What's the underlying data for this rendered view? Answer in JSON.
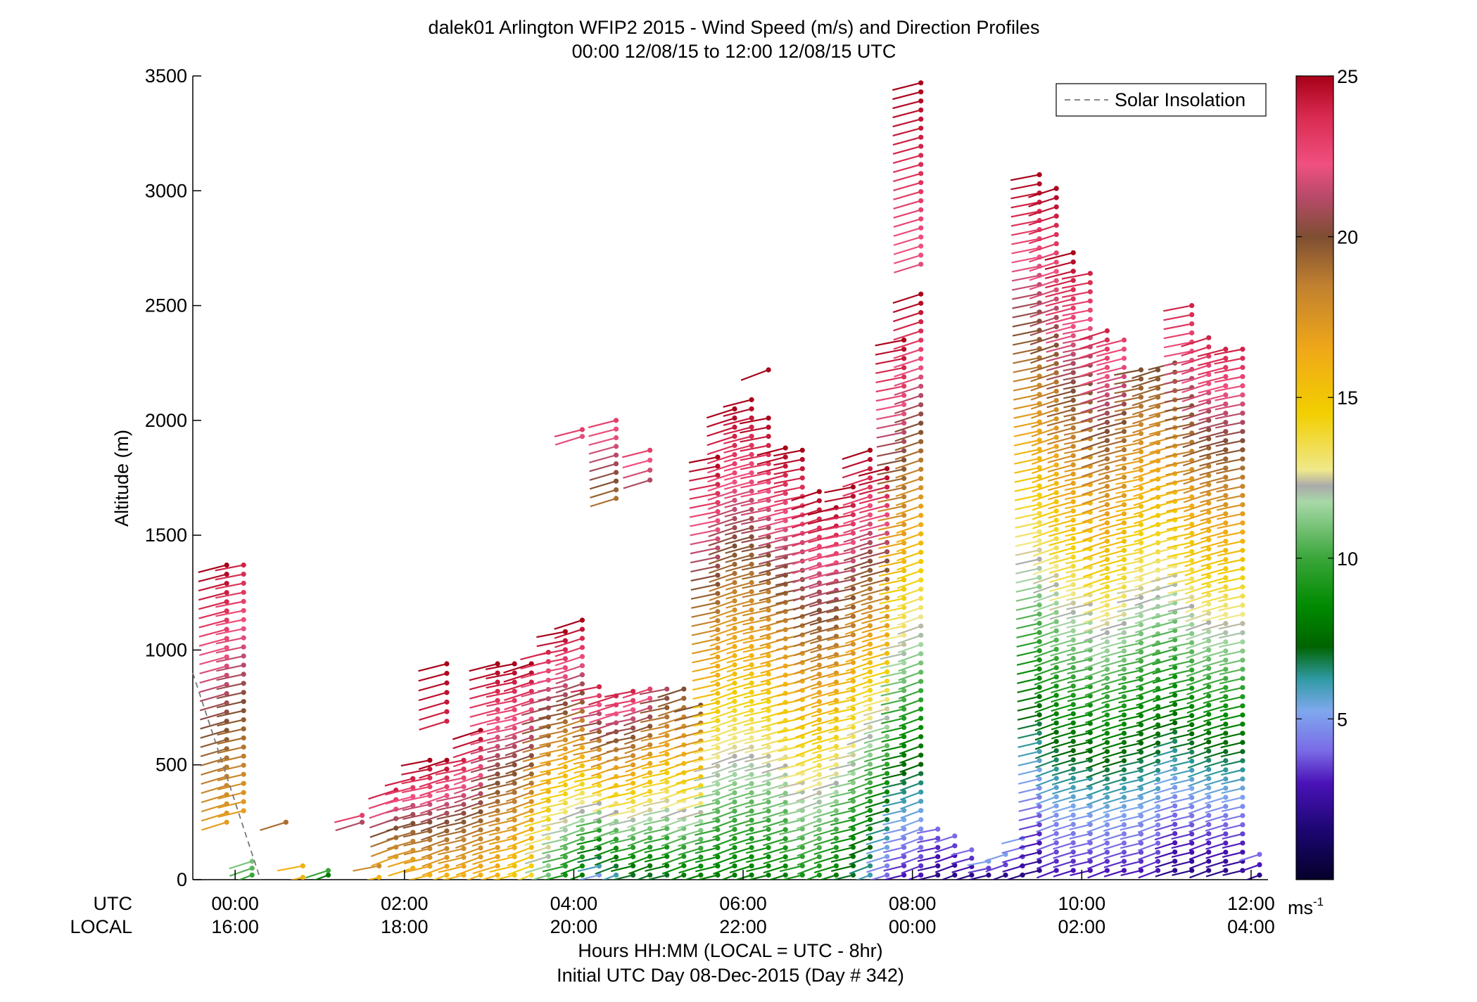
{
  "chart_data": {
    "type": "scatter",
    "title": "dalek01 Arlington WFIP2 2015 - Wind Speed (m/s) and Direction Profiles",
    "subtitle": "00:00 12/08/15 to 12:00 12/08/15  UTC",
    "xlabel": "Hours HH:MM  (LOCAL = UTC - 8hr)",
    "xlabel2": "Initial UTC Day 08-Dec-2015 (Day # 342)",
    "ylabel": "Altitude (m)",
    "ylim": [
      0,
      3500
    ],
    "xlim_hours": [
      -0.5,
      12.2
    ],
    "grid": false,
    "legend_placement": "top-right",
    "legend_entries": [
      "Solar Insolation"
    ],
    "x_row_labels": {
      "utc": "UTC",
      "local": "LOCAL"
    },
    "x_ticks_hours": [
      0,
      2,
      4,
      6,
      8,
      10,
      12
    ],
    "x_tick_labels_utc": [
      "00:00",
      "02:00",
      "04:00",
      "06:00",
      "08:00",
      "10:00",
      "12:00"
    ],
    "x_tick_labels_local": [
      "16:00",
      "18:00",
      "20:00",
      "22:00",
      "00:00",
      "02:00",
      "04:00"
    ],
    "y_ticks": [
      0,
      500,
      1000,
      1500,
      2000,
      2500,
      3000,
      3500
    ],
    "y_tick_labels": [
      "0",
      "500",
      "1000",
      "1500",
      "2000",
      "2500",
      "3000",
      "3500"
    ],
    "colorbar": {
      "min": 0,
      "max": 25,
      "ticks": [
        5,
        10,
        15,
        20,
        25
      ],
      "tick_labels": [
        "5",
        "10",
        "15",
        "20",
        "25"
      ],
      "unit_label": "ms",
      "unit_exponent": "-1"
    },
    "solar_insolation": {
      "x": [
        -0.5,
        -0.1,
        0.3
      ],
      "y": [
        900,
        450,
        0
      ]
    },
    "profiles": [
      {
        "t": -0.1,
        "z0": 250,
        "z1": 1370,
        "lo": 17,
        "hi": 25
      },
      {
        "t": 0.1,
        "z0": 300,
        "z1": 1370,
        "lo": 17,
        "hi": 24
      },
      {
        "t": 0.2,
        "z0": 20,
        "z1": 80,
        "lo": 10,
        "hi": 11
      },
      {
        "t": 0.6,
        "z0": 250,
        "z1": 250,
        "lo": 19,
        "hi": 19
      },
      {
        "t": 0.8,
        "z0": 10,
        "z1": 60,
        "lo": 16,
        "hi": 16
      },
      {
        "t": 1.1,
        "z0": 20,
        "z1": 40,
        "lo": 8,
        "hi": 10
      },
      {
        "t": 1.5,
        "z0": 250,
        "z1": 280,
        "lo": 21,
        "hi": 23
      },
      {
        "t": 1.7,
        "z0": 10,
        "z1": 60,
        "lo": 16,
        "hi": 18
      },
      {
        "t": 1.9,
        "z0": 100,
        "z1": 390,
        "lo": 17,
        "hi": 24
      },
      {
        "t": 2.1,
        "z0": 50,
        "z1": 440,
        "lo": 16,
        "hi": 24
      },
      {
        "t": 2.3,
        "z0": 20,
        "z1": 520,
        "lo": 16,
        "hi": 25
      },
      {
        "t": 2.5,
        "z0": 20,
        "z1": 520,
        "lo": 16,
        "hi": 25
      },
      {
        "t": 2.5,
        "z0": 690,
        "z1": 940,
        "lo": 24,
        "hi": 25
      },
      {
        "t": 2.7,
        "z0": 20,
        "z1": 520,
        "lo": 16,
        "hi": 24
      },
      {
        "t": 2.9,
        "z0": 20,
        "z1": 650,
        "lo": 16,
        "hi": 25
      },
      {
        "t": 3.1,
        "z0": 20,
        "z1": 940,
        "lo": 16,
        "hi": 25
      },
      {
        "t": 3.3,
        "z0": 20,
        "z1": 940,
        "lo": 15,
        "hi": 25
      },
      {
        "t": 3.5,
        "z0": 20,
        "z1": 940,
        "lo": 14,
        "hi": 25
      },
      {
        "t": 3.7,
        "z0": 20,
        "z1": 990,
        "lo": 11,
        "hi": 24
      },
      {
        "t": 3.9,
        "z0": 20,
        "z1": 1080,
        "lo": 9,
        "hi": 25
      },
      {
        "t": 4.1,
        "z0": 20,
        "z1": 1130,
        "lo": 8,
        "hi": 25
      },
      {
        "t": 4.1,
        "z0": 1930,
        "z1": 1960,
        "lo": 22,
        "hi": 23
      },
      {
        "t": 4.3,
        "z0": 20,
        "z1": 840,
        "lo": 5,
        "hi": 24
      },
      {
        "t": 4.5,
        "z0": 20,
        "z1": 800,
        "lo": 6,
        "hi": 24
      },
      {
        "t": 4.5,
        "z0": 1660,
        "z1": 2000,
        "lo": 19,
        "hi": 23
      },
      {
        "t": 4.7,
        "z0": 20,
        "z1": 820,
        "lo": 7,
        "hi": 24
      },
      {
        "t": 4.9,
        "z0": 20,
        "z1": 830,
        "lo": 7,
        "hi": 23
      },
      {
        "t": 4.9,
        "z0": 1740,
        "z1": 1870,
        "lo": 21,
        "hi": 23
      },
      {
        "t": 5.1,
        "z0": 20,
        "z1": 830,
        "lo": 7,
        "hi": 21
      },
      {
        "t": 5.3,
        "z0": 20,
        "z1": 830,
        "lo": 8,
        "hi": 20
      },
      {
        "t": 5.5,
        "z0": 20,
        "z1": 760,
        "lo": 8,
        "hi": 20
      },
      {
        "t": 5.7,
        "z0": 20,
        "z1": 1840,
        "lo": 8,
        "hi": 25
      },
      {
        "t": 5.9,
        "z0": 20,
        "z1": 2050,
        "lo": 8,
        "hi": 25
      },
      {
        "t": 6.1,
        "z0": 20,
        "z1": 2090,
        "lo": 8,
        "hi": 25
      },
      {
        "t": 6.3,
        "z0": 20,
        "z1": 2010,
        "lo": 8,
        "hi": 25
      },
      {
        "t": 6.3,
        "z0": 2220,
        "z1": 2220,
        "lo": 25,
        "hi": 25
      },
      {
        "t": 6.5,
        "z0": 20,
        "z1": 1880,
        "lo": 8,
        "hi": 25
      },
      {
        "t": 6.7,
        "z0": 20,
        "z1": 1870,
        "lo": 9,
        "hi": 25
      },
      {
        "t": 6.9,
        "z0": 20,
        "z1": 1690,
        "lo": 9,
        "hi": 25
      },
      {
        "t": 7.1,
        "z0": 20,
        "z1": 1620,
        "lo": 8,
        "hi": 25
      },
      {
        "t": 7.3,
        "z0": 20,
        "z1": 1710,
        "lo": 7,
        "hi": 25
      },
      {
        "t": 7.5,
        "z0": 20,
        "z1": 1870,
        "lo": 6,
        "hi": 25
      },
      {
        "t": 7.7,
        "z0": 20,
        "z1": 1790,
        "lo": 4,
        "hi": 25
      },
      {
        "t": 7.9,
        "z0": 20,
        "z1": 2350,
        "lo": 3,
        "hi": 25
      },
      {
        "t": 8.1,
        "z0": 20,
        "z1": 2550,
        "lo": 3,
        "hi": 25
      },
      {
        "t": 8.1,
        "z0": 2680,
        "z1": 3470,
        "lo": 22,
        "hi": 25
      },
      {
        "t": 8.3,
        "z0": 20,
        "z1": 220,
        "lo": 2,
        "hi": 4
      },
      {
        "t": 8.5,
        "z0": 20,
        "z1": 190,
        "lo": 2,
        "hi": 4
      },
      {
        "t": 8.7,
        "z0": 20,
        "z1": 130,
        "lo": 2,
        "hi": 4
      },
      {
        "t": 8.9,
        "z0": 20,
        "z1": 80,
        "lo": 2,
        "hi": 5
      },
      {
        "t": 9.1,
        "z0": 20,
        "z1": 110,
        "lo": 2,
        "hi": 5
      },
      {
        "t": 9.3,
        "z0": 20,
        "z1": 180,
        "lo": 2,
        "hi": 5
      },
      {
        "t": 9.5,
        "z0": 40,
        "z1": 3070,
        "lo": 2,
        "hi": 25
      },
      {
        "t": 9.7,
        "z0": 40,
        "z1": 3010,
        "lo": 3,
        "hi": 25
      },
      {
        "t": 9.9,
        "z0": 40,
        "z1": 2730,
        "lo": 3,
        "hi": 25
      },
      {
        "t": 10.1,
        "z0": 40,
        "z1": 2640,
        "lo": 3,
        "hi": 24
      },
      {
        "t": 10.3,
        "z0": 40,
        "z1": 2390,
        "lo": 3,
        "hi": 24
      },
      {
        "t": 10.5,
        "z0": 40,
        "z1": 2350,
        "lo": 3,
        "hi": 23
      },
      {
        "t": 10.7,
        "z0": 40,
        "z1": 2220,
        "lo": 3,
        "hi": 20
      },
      {
        "t": 10.9,
        "z0": 40,
        "z1": 2220,
        "lo": 3,
        "hi": 20
      },
      {
        "t": 11.1,
        "z0": 40,
        "z1": 2250,
        "lo": 2,
        "hi": 20
      },
      {
        "t": 11.3,
        "z0": 40,
        "z1": 2500,
        "lo": 2,
        "hi": 24
      },
      {
        "t": 11.5,
        "z0": 40,
        "z1": 2360,
        "lo": 2,
        "hi": 24
      },
      {
        "t": 11.7,
        "z0": 40,
        "z1": 2310,
        "lo": 2,
        "hi": 24
      },
      {
        "t": 11.9,
        "z0": 40,
        "z1": 2310,
        "lo": 2,
        "hi": 24
      },
      {
        "t": 12.1,
        "z0": 20,
        "z1": 110,
        "lo": 2,
        "hi": 4
      }
    ]
  }
}
